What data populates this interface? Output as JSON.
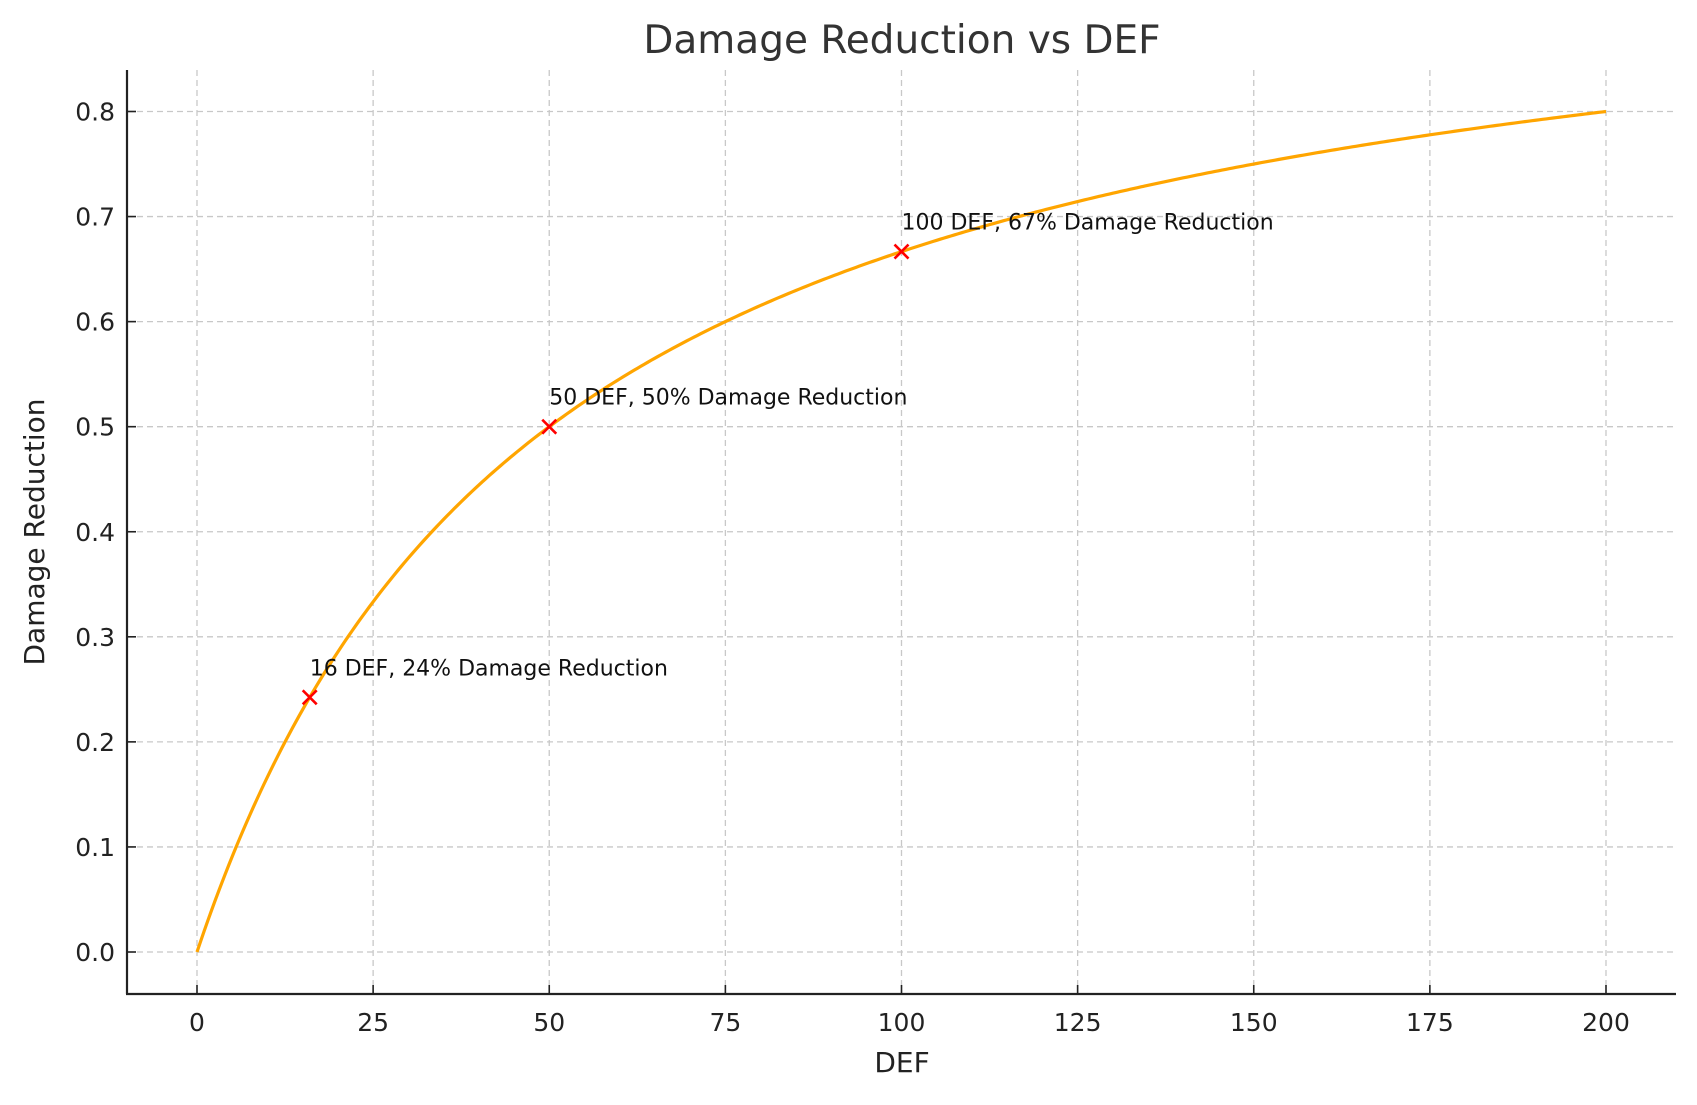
{
  "chart_data": {
    "type": "line",
    "title": "Damage Reduction vs DEF",
    "xlabel": "DEF",
    "ylabel": "Damage Reduction",
    "xlim": [
      -10,
      210
    ],
    "ylim": [
      -0.04,
      0.84
    ],
    "xticks": [
      0,
      25,
      50,
      75,
      100,
      125,
      150,
      175,
      200
    ],
    "xtick_labels": [
      "0",
      "25",
      "50",
      "75",
      "100",
      "125",
      "150",
      "175",
      "200"
    ],
    "yticks": [
      0.0,
      0.1,
      0.2,
      0.3,
      0.4,
      0.5,
      0.6,
      0.7,
      0.8
    ],
    "ytick_labels": [
      "0.0",
      "0.1",
      "0.2",
      "0.3",
      "0.4",
      "0.5",
      "0.6",
      "0.7",
      "0.8"
    ],
    "grid": true,
    "series": [
      {
        "name": "Damage Reduction",
        "formula": "DEF / (DEF + 50)",
        "x_range": [
          0,
          200
        ],
        "color": "#FFA500"
      }
    ],
    "markers": [
      {
        "x": 16,
        "y": 0.2424,
        "label": "16 DEF, 24% Damage Reduction"
      },
      {
        "x": 50,
        "y": 0.5,
        "label": "50 DEF, 50% Damage Reduction"
      },
      {
        "x": 100,
        "y": 0.6667,
        "label": "100 DEF, 67% Damage Reduction"
      }
    ],
    "marker_color": "#FF0000"
  }
}
